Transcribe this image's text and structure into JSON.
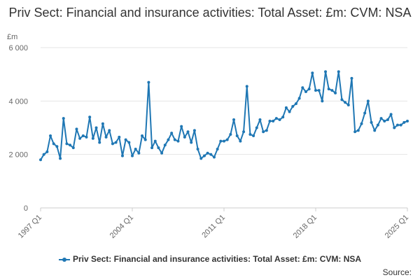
{
  "chart_data": {
    "type": "line",
    "title": "Priv Sect: Financial and insurance activities: Total Asset: £m: CVM: NSA",
    "ylabel": "£m",
    "xlabel": "",
    "ylim": [
      0,
      6000
    ],
    "y_ticks": [
      {
        "value": 0,
        "label": "0"
      },
      {
        "value": 2000,
        "label": "2 000"
      },
      {
        "value": 4000,
        "label": "4 000"
      },
      {
        "value": 6000,
        "label": "6 000"
      }
    ],
    "x_ticks": [
      "1997 Q1",
      "2004 Q1",
      "2011 Q1",
      "2018 Q1",
      "2025 Q1"
    ],
    "grid": "horizontal",
    "legend_position": "bottom",
    "series": [
      {
        "name": "Priv Sect: Financial and insurance activities: Total Asset: £m: CVM: NSA",
        "color": "#1f77b4",
        "start_year": 1997,
        "values": [
          1800,
          2000,
          2100,
          2700,
          2400,
          2300,
          1850,
          3350,
          2400,
          2350,
          2250,
          2950,
          2600,
          2700,
          2650,
          3400,
          2600,
          3000,
          2450,
          3150,
          2650,
          2900,
          2400,
          2450,
          2650,
          1950,
          2550,
          2450,
          1950,
          2200,
          2050,
          2700,
          2550,
          4700,
          2250,
          2500,
          2250,
          2050,
          2350,
          2550,
          2800,
          2550,
          2500,
          3050,
          2650,
          2850,
          2450,
          2900,
          2200,
          1850,
          1950,
          2050,
          2000,
          1900,
          2200,
          2500,
          2500,
          2550,
          2750,
          3300,
          2700,
          2500,
          2850,
          4550,
          2750,
          2700,
          3000,
          3300,
          2850,
          2900,
          3250,
          3250,
          3350,
          3300,
          3400,
          3750,
          3600,
          3800,
          3900,
          4100,
          4500,
          4350,
          4450,
          5050,
          4400,
          4400,
          4000,
          5100,
          4450,
          4400,
          4300,
          5100,
          4050,
          3950,
          3850,
          4850,
          2850,
          2900,
          3150,
          3550,
          4000,
          3200,
          2900,
          3100,
          3350,
          3250,
          3300,
          3500,
          3000,
          3100,
          3100,
          3200,
          3250
        ]
      }
    ]
  },
  "footer": {
    "source_label": "Source:"
  }
}
